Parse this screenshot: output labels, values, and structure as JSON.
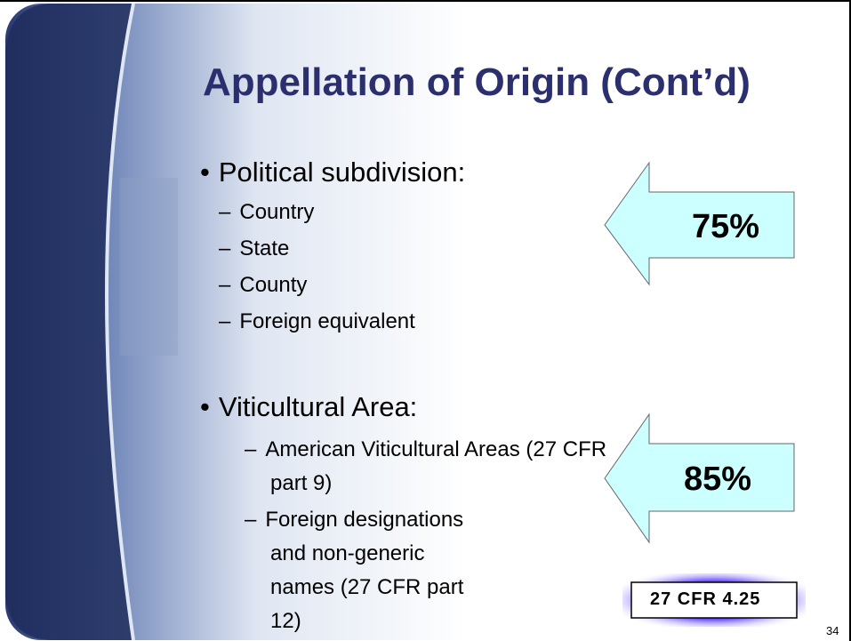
{
  "slide": {
    "title": "Appellation of Origin (Cont’d)",
    "sections": [
      {
        "heading": "Political subdivision:",
        "items": [
          "Country",
          "State",
          "County",
          "Foreign equivalent"
        ]
      },
      {
        "heading": "Viticultural Area:",
        "items": [
          "American Viticultural Areas (27 CFR part 9)",
          "Foreign designations and non-generic names (27 CFR part 12)"
        ]
      }
    ],
    "arrows": [
      "75%",
      "85%"
    ],
    "reference": "27 CFR 4.25",
    "page_number": "34"
  }
}
